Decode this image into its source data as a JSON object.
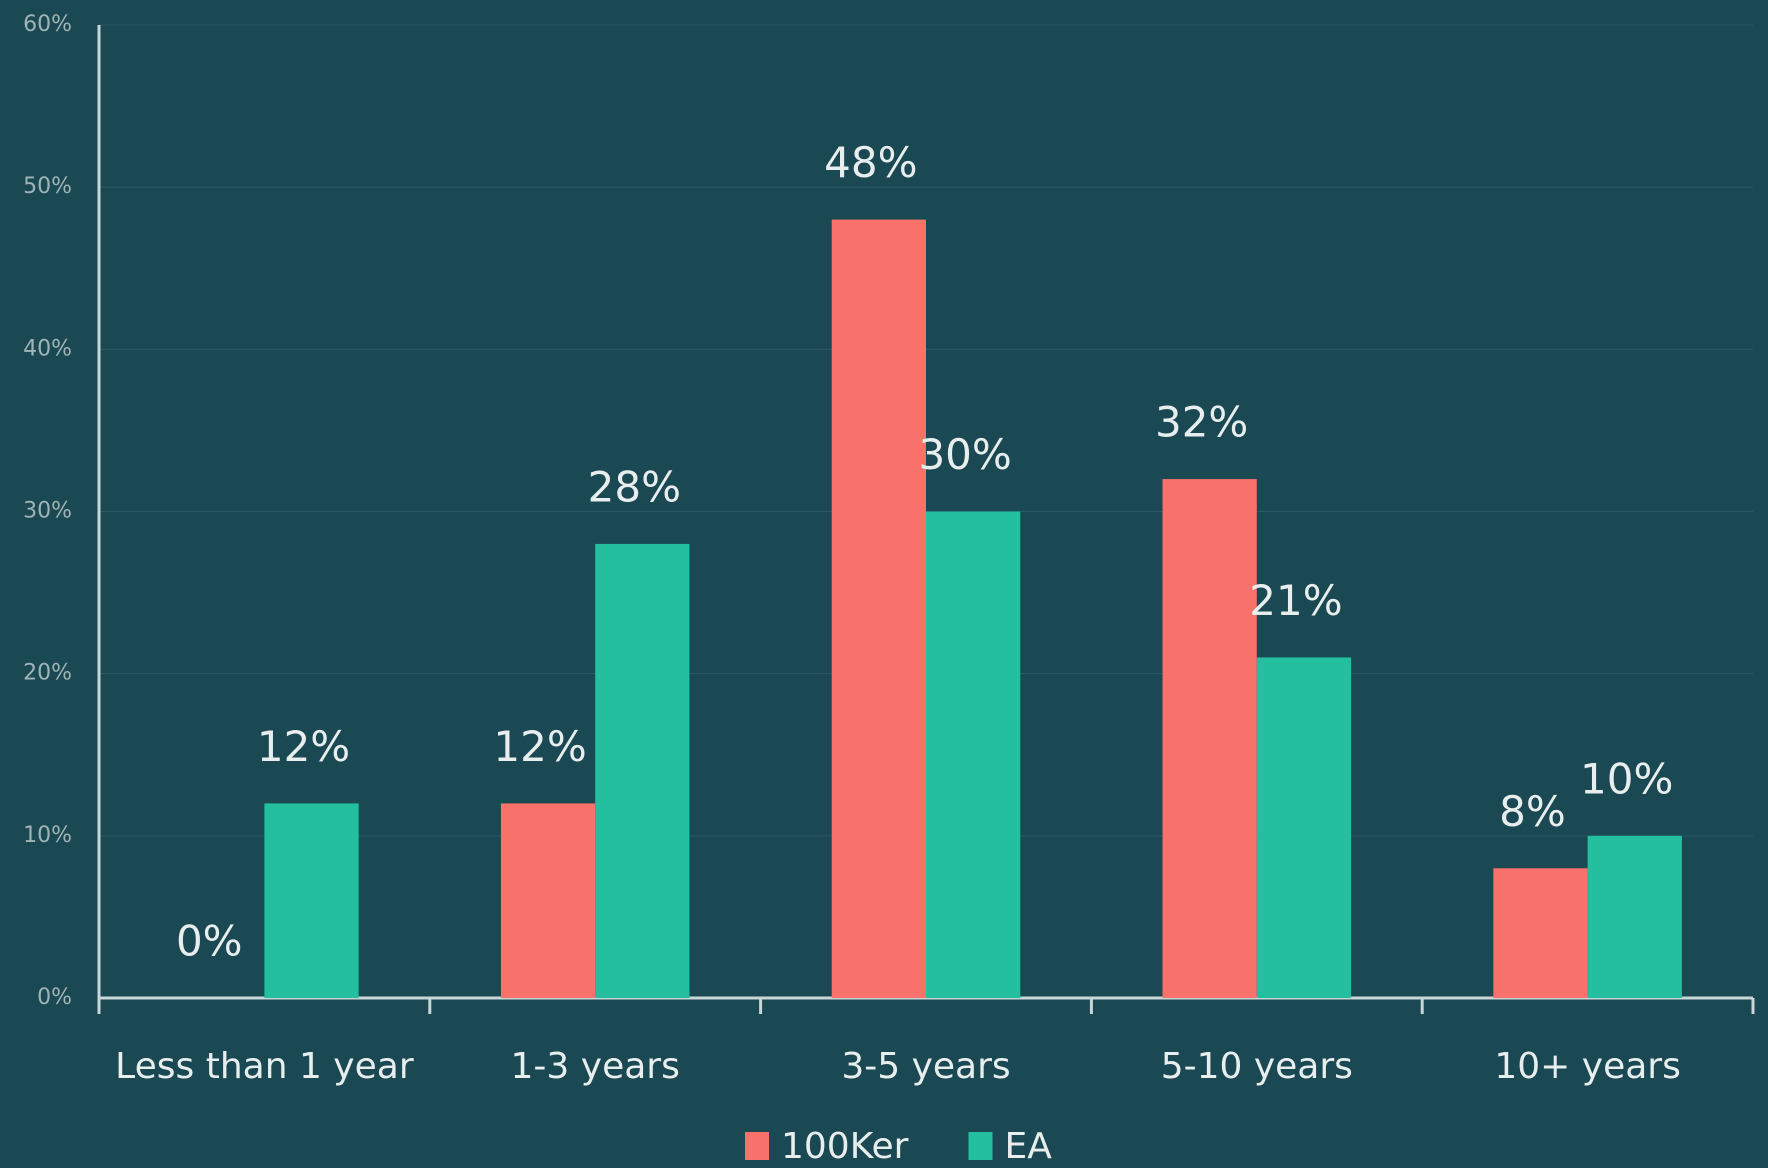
{
  "chart_data": {
    "type": "bar",
    "categories": [
      "Less than 1 year",
      "1-3 years",
      "3-5 years",
      "5-10 years",
      "10+ years"
    ],
    "series": [
      {
        "name": "100Ker",
        "color": "#f8716a",
        "values": [
          0,
          12,
          48,
          32,
          8
        ],
        "value_labels": [
          "0%",
          "12%",
          "48%",
          "32%",
          "8%"
        ]
      },
      {
        "name": "EA",
        "color": "#23bf9f",
        "values": [
          12,
          28,
          30,
          21,
          10
        ],
        "value_labels": [
          "12%",
          "28%",
          "30%",
          "21%",
          "10%"
        ]
      }
    ],
    "ylim": [
      0,
      60
    ],
    "yticks": [
      {
        "value": 0,
        "label": "0%"
      },
      {
        "value": 10,
        "label": "10%"
      },
      {
        "value": 20,
        "label": "20%"
      },
      {
        "value": 30,
        "label": "30%"
      },
      {
        "value": 40,
        "label": "40%"
      },
      {
        "value": 50,
        "label": "50%"
      },
      {
        "value": 60,
        "label": "60%"
      }
    ],
    "grid": true,
    "legend": "bottom"
  }
}
